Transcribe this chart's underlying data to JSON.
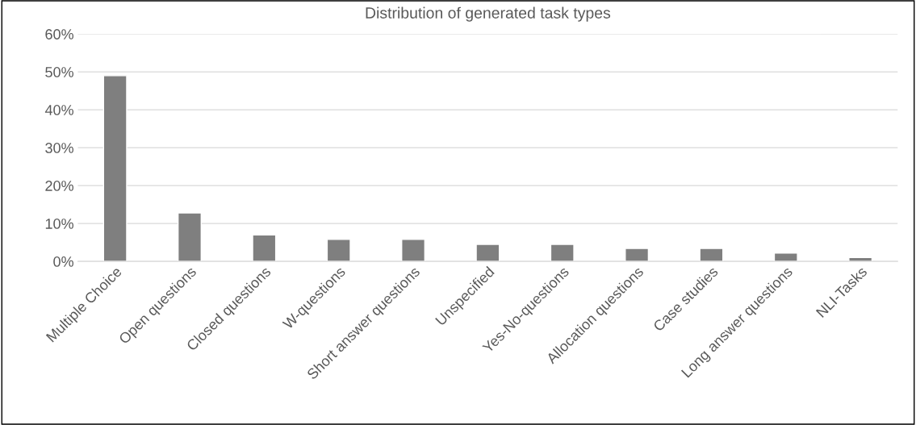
{
  "chart_data": {
    "type": "bar",
    "title": "Distribution of generated task types",
    "categories": [
      "Multiple Choice",
      "Open questions",
      "Closed questions",
      "W-questions",
      "Short answer questions",
      "Unspecified",
      "Yes-No-questions",
      "Allocation questions",
      "Case studies",
      "Long answer questions",
      "NLI-Tasks"
    ],
    "values": [
      49.0,
      12.8,
      7.0,
      5.8,
      5.8,
      4.5,
      4.5,
      3.4,
      3.4,
      2.2,
      1.0
    ],
    "color": "#7f7f7f",
    "ylim": [
      0,
      60
    ],
    "yticks": [
      {
        "value": 0,
        "label": "0%"
      },
      {
        "value": 10,
        "label": "10%"
      },
      {
        "value": 20,
        "label": "20%"
      },
      {
        "value": 30,
        "label": "30%"
      },
      {
        "value": 40,
        "label": "40%"
      },
      {
        "value": 50,
        "label": "50%"
      },
      {
        "value": 60,
        "label": "60%"
      }
    ],
    "grid": "y",
    "legend": false
  }
}
